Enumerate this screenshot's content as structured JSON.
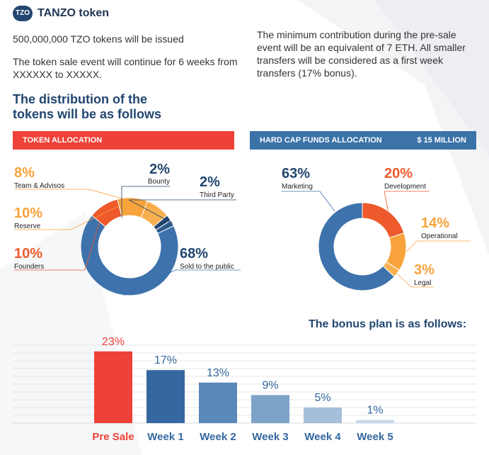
{
  "header": {
    "logo_text": "TZO",
    "title": "TANZO token"
  },
  "intro": {
    "line1": "500,000,000 TZO tokens will be issued",
    "line2": "The token sale event will continue for 6 weeks from XXXXXX to XXXXX.",
    "line3": "The minimum contribution during the pre-sale event will be an equivalent of 7 ETH. All smaller transfers will be considered as a first week transfers (17% bonus)."
  },
  "distribution_title": "The distribution of the tokens will be as follows",
  "token_allocation": {
    "header": "TOKEN ALLOCATION"
  },
  "funds_allocation": {
    "header": "HARD CAP FUNDS ALLOCATION",
    "amount": "$ 15 MILLION"
  },
  "bonus_title": "The bonus plan is as follows:",
  "colors": {
    "red": "#ee4238",
    "orange": "#f5a03a",
    "dark_blue": "#22466f",
    "blue": "#3b72a8",
    "chart_blue": "#3d72ac"
  },
  "chart_data": [
    {
      "type": "pie",
      "name": "token_allocation",
      "title": "TOKEN ALLOCATION",
      "slices": [
        {
          "label": "Sold to the public",
          "value": 68,
          "pct_label": "68%",
          "color": "#3d72ac"
        },
        {
          "label": "Founders",
          "value": 10,
          "pct_label": "10%",
          "color": "#ee5a2c"
        },
        {
          "label": "Reserve",
          "value": 10,
          "pct_label": "10%",
          "color": "#f7a23a"
        },
        {
          "label": "Team & Advisos",
          "value": 8,
          "pct_label": "8%",
          "color": "#f7b04f"
        },
        {
          "label": "Bounty",
          "value": 2,
          "pct_label": "2%",
          "color": "#22466f"
        },
        {
          "label": "Third Party",
          "value": 2,
          "pct_label": "2%",
          "color": "#2f5b8c"
        }
      ]
    },
    {
      "type": "pie",
      "name": "funds_allocation",
      "title": "HARD CAP FUNDS ALLOCATION",
      "slices": [
        {
          "label": "Development",
          "value": 20,
          "pct_label": "20%",
          "color": "#ee5a2c"
        },
        {
          "label": "Operational",
          "value": 14,
          "pct_label": "14%",
          "color": "#f7a23a"
        },
        {
          "label": "Legal",
          "value": 3,
          "pct_label": "3%",
          "color": "#f7b24f"
        },
        {
          "label": "Marketing",
          "value": 63,
          "pct_label": "63%",
          "color": "#3d72ac"
        }
      ]
    },
    {
      "type": "bar",
      "name": "bonus_plan",
      "title": "The bonus plan is as follows:",
      "categories": [
        "Pre Sale",
        "Week 1",
        "Week 2",
        "Week 3",
        "Week 4",
        "Week 5"
      ],
      "values": [
        23,
        17,
        13,
        9,
        5,
        1
      ],
      "value_labels": [
        "23%",
        "17%",
        "13%",
        "9%",
        "5%",
        "1%"
      ],
      "colors": [
        "#ee4238",
        "#3568a0",
        "#5a88b8",
        "#7ea3c9",
        "#a5bfdb",
        "#c8d8ea"
      ],
      "label_colors": [
        "#ee4238",
        "#3568a0",
        "#3568a0",
        "#3568a0",
        "#3568a0",
        "#3568a0"
      ],
      "ylim": [
        0,
        25
      ],
      "grid": true
    }
  ]
}
